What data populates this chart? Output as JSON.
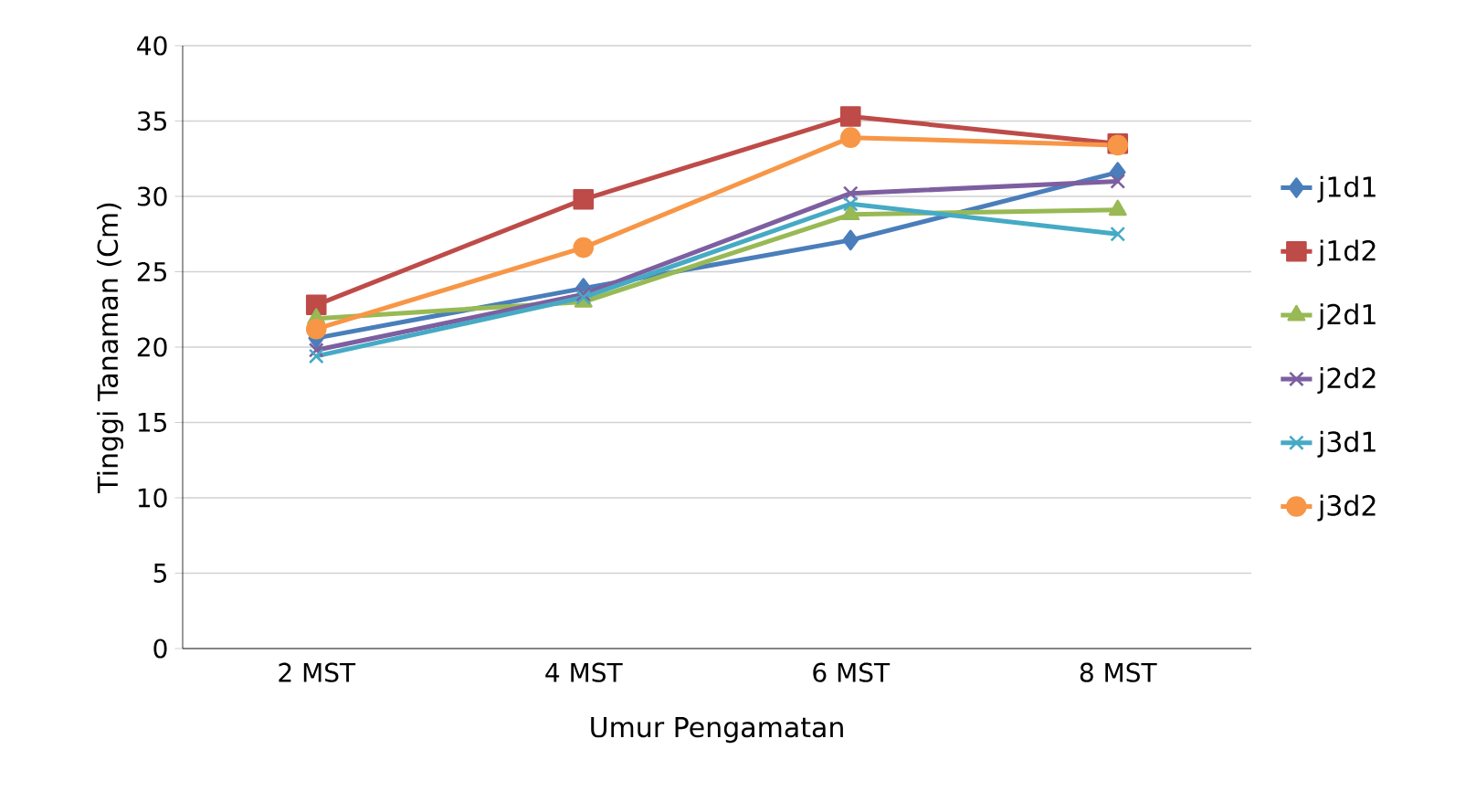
{
  "chart_data": {
    "type": "line",
    "xlabel": "Umur Pengamatan",
    "ylabel": "Tinggi Tanaman (Cm)",
    "categories": [
      "2 MST",
      "4 MST",
      "6 MST",
      "8 MST"
    ],
    "ylim": [
      0,
      40
    ],
    "yticks": [
      0,
      5,
      10,
      15,
      20,
      25,
      30,
      35,
      40
    ],
    "grid": "y",
    "legend": "right",
    "series": [
      {
        "name": "j1d1",
        "color": "#4a7ebb",
        "marker": "diamond",
        "values": [
          20.6,
          23.9,
          27.1,
          31.6
        ]
      },
      {
        "name": "j1d2",
        "color": "#be4b48",
        "marker": "square",
        "values": [
          22.8,
          29.8,
          35.3,
          33.5
        ]
      },
      {
        "name": "j2d1",
        "color": "#98b954",
        "marker": "triangle",
        "values": [
          21.9,
          23.0,
          28.8,
          29.1
        ]
      },
      {
        "name": "j2d2",
        "color": "#7d5fa0",
        "marker": "cross",
        "values": [
          19.8,
          23.5,
          30.2,
          31.0
        ]
      },
      {
        "name": "j3d1",
        "color": "#46aac5",
        "marker": "cross",
        "values": [
          19.4,
          23.3,
          29.5,
          27.5
        ]
      },
      {
        "name": "j3d2",
        "color": "#f79646",
        "marker": "circle",
        "values": [
          21.2,
          26.6,
          33.9,
          33.4
        ]
      }
    ]
  }
}
